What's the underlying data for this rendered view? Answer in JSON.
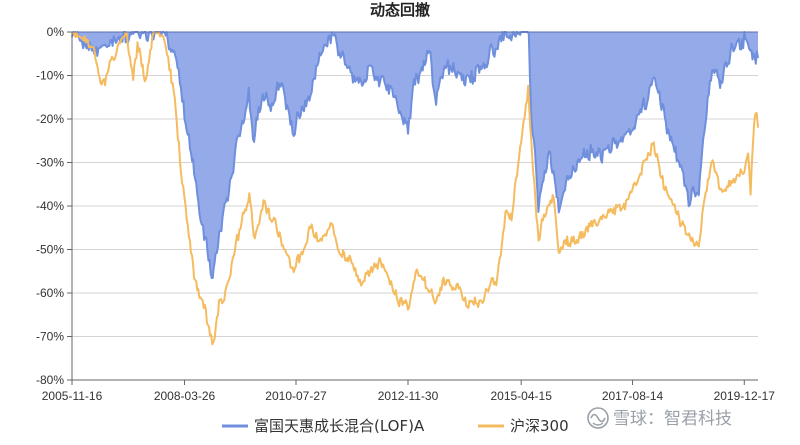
{
  "chart_data": {
    "type": "area",
    "title": "动态回撤",
    "x_ticks": [
      "2005-11-16",
      "2008-03-26",
      "2010-07-27",
      "2012-11-30",
      "2015-04-15",
      "2017-08-14",
      "2019-12-17"
    ],
    "y_ticks": [
      "0%",
      "-10%",
      "-20%",
      "-30%",
      "-40%",
      "-50%",
      "-60%",
      "-70%",
      "-80%"
    ],
    "ylim": [
      -80,
      0
    ],
    "xlim": [
      "2005-11-16",
      "2020-03-31"
    ],
    "grid": true,
    "legend_position": "bottom",
    "series": [
      {
        "name": "富国天惠成长混合(LOF)A",
        "color": "#6f8fdd",
        "fill": "#8ea5e8",
        "style": "area",
        "points": [
          [
            "2005-11-16",
            0
          ],
          [
            "2006-04-01",
            -3
          ],
          [
            "2006-07-01",
            -5
          ],
          [
            "2006-10-01",
            -2
          ],
          [
            "2007-01-01",
            -1
          ],
          [
            "2007-06-01",
            0
          ],
          [
            "2007-10-01",
            0
          ],
          [
            "2008-01-15",
            -5
          ],
          [
            "2008-03-26",
            -18
          ],
          [
            "2008-05-15",
            -28
          ],
          [
            "2008-07-01",
            -38
          ],
          [
            "2008-09-01",
            -48
          ],
          [
            "2008-10-28",
            -57
          ],
          [
            "2008-11-10",
            -52
          ],
          [
            "2008-12-25",
            -45
          ],
          [
            "2009-03-01",
            -36
          ],
          [
            "2009-06-01",
            -22
          ],
          [
            "2009-07-31",
            -15
          ],
          [
            "2009-09-01",
            -25
          ],
          [
            "2009-11-15",
            -14
          ],
          [
            "2010-01-15",
            -17
          ],
          [
            "2010-04-01",
            -12
          ],
          [
            "2010-07-01",
            -23
          ],
          [
            "2010-09-01",
            -18
          ],
          [
            "2010-11-15",
            -14
          ],
          [
            "2011-01-15",
            -6
          ],
          [
            "2011-04-01",
            -2
          ],
          [
            "2011-05-15",
            0
          ],
          [
            "2011-06-15",
            -4
          ],
          [
            "2011-09-01",
            -9
          ],
          [
            "2011-12-15",
            -13
          ],
          [
            "2012-02-15",
            -8
          ],
          [
            "2012-05-01",
            -11
          ],
          [
            "2012-08-01",
            -14
          ],
          [
            "2012-11-30",
            -22
          ],
          [
            "2013-01-15",
            -12
          ],
          [
            "2013-05-20",
            -5
          ],
          [
            "2013-06-25",
            -16
          ],
          [
            "2013-09-15",
            -8
          ],
          [
            "2013-12-15",
            -10
          ],
          [
            "2014-03-15",
            -11
          ],
          [
            "2014-07-01",
            -7
          ],
          [
            "2014-10-01",
            -3
          ],
          [
            "2014-12-01",
            0
          ],
          [
            "2015-04-15",
            0
          ],
          [
            "2015-06-12",
            0
          ],
          [
            "2015-07-01",
            -20
          ],
          [
            "2015-07-30",
            -27
          ],
          [
            "2015-08-25",
            -40
          ],
          [
            "2015-09-15",
            -35
          ],
          [
            "2015-11-15",
            -27
          ],
          [
            "2016-01-28",
            -40
          ],
          [
            "2016-03-15",
            -35
          ],
          [
            "2016-06-01",
            -31
          ],
          [
            "2016-09-01",
            -28
          ],
          [
            "2016-12-15",
            -28
          ],
          [
            "2017-03-15",
            -26
          ],
          [
            "2017-06-15",
            -24
          ],
          [
            "2017-08-14",
            -21
          ],
          [
            "2017-11-15",
            -17
          ],
          [
            "2018-01-25",
            -10
          ],
          [
            "2018-04-01",
            -18
          ],
          [
            "2018-07-01",
            -27
          ],
          [
            "2018-10-18",
            -38
          ],
          [
            "2019-01-03",
            -36
          ],
          [
            "2019-02-15",
            -22
          ],
          [
            "2019-04-15",
            -8
          ],
          [
            "2019-06-15",
            -12
          ],
          [
            "2019-09-01",
            -5
          ],
          [
            "2019-12-17",
            -2
          ],
          [
            "2020-02-01",
            -4
          ],
          [
            "2020-03-31",
            -6
          ]
        ]
      },
      {
        "name": "沪深300",
        "color": "#f5bb5f",
        "style": "line",
        "points": [
          [
            "2005-11-16",
            0
          ],
          [
            "2006-03-01",
            -2
          ],
          [
            "2006-05-15",
            -5
          ],
          [
            "2006-07-01",
            -13
          ],
          [
            "2006-09-01",
            -8
          ],
          [
            "2006-11-01",
            -3
          ],
          [
            "2007-01-01",
            0
          ],
          [
            "2007-02-27",
            -11
          ],
          [
            "2007-04-01",
            -3
          ],
          [
            "2007-06-04",
            -12
          ],
          [
            "2007-08-01",
            0
          ],
          [
            "2007-10-16",
            0
          ],
          [
            "2007-12-01",
            -8
          ],
          [
            "2008-01-20",
            -18
          ],
          [
            "2008-02-20",
            -30
          ],
          [
            "2008-04-20",
            -45
          ],
          [
            "2008-06-15",
            -57
          ],
          [
            "2008-08-20",
            -63
          ],
          [
            "2008-10-15",
            -70
          ],
          [
            "2008-11-04",
            -72
          ],
          [
            "2008-12-15",
            -62
          ],
          [
            "2009-02-01",
            -60
          ],
          [
            "2009-04-15",
            -50
          ],
          [
            "2009-06-15",
            -42
          ],
          [
            "2009-08-04",
            -38
          ],
          [
            "2009-09-15",
            -48
          ],
          [
            "2009-11-20",
            -40
          ],
          [
            "2010-01-15",
            -42
          ],
          [
            "2010-04-01",
            -47
          ],
          [
            "2010-07-01",
            -55
          ],
          [
            "2010-09-15",
            -50
          ],
          [
            "2010-11-08",
            -45
          ],
          [
            "2011-01-15",
            -48
          ],
          [
            "2011-04-18",
            -44
          ],
          [
            "2011-06-20",
            -50
          ],
          [
            "2011-09-01",
            -52
          ],
          [
            "2011-12-15",
            -58
          ],
          [
            "2012-02-15",
            -54
          ],
          [
            "2012-05-05",
            -53
          ],
          [
            "2012-07-15",
            -58
          ],
          [
            "2012-09-15",
            -62
          ],
          [
            "2012-11-30",
            -63
          ],
          [
            "2013-02-05",
            -55
          ],
          [
            "2013-04-15",
            -58
          ],
          [
            "2013-06-25",
            -62
          ],
          [
            "2013-09-15",
            -57
          ],
          [
            "2013-12-15",
            -59
          ],
          [
            "2014-03-15",
            -63
          ],
          [
            "2014-06-15",
            -62
          ],
          [
            "2014-09-01",
            -57
          ],
          [
            "2014-10-15",
            -57
          ],
          [
            "2014-12-15",
            -42
          ],
          [
            "2015-02-01",
            -43
          ],
          [
            "2015-04-15",
            -25
          ],
          [
            "2015-06-08",
            -12
          ],
          [
            "2015-06-30",
            -25
          ],
          [
            "2015-08-26",
            -48
          ],
          [
            "2015-10-15",
            -41
          ],
          [
            "2015-12-20",
            -38
          ],
          [
            "2016-01-28",
            -52
          ],
          [
            "2016-03-15",
            -49
          ],
          [
            "2016-06-15",
            -47
          ],
          [
            "2016-09-15",
            -45
          ],
          [
            "2016-12-15",
            -43
          ],
          [
            "2017-03-15",
            -41
          ],
          [
            "2017-06-01",
            -40
          ],
          [
            "2017-08-14",
            -36
          ],
          [
            "2017-11-15",
            -30
          ],
          [
            "2018-01-24",
            -26
          ],
          [
            "2018-03-15",
            -33
          ],
          [
            "2018-06-15",
            -40
          ],
          [
            "2018-09-01",
            -44
          ],
          [
            "2019-01-03",
            -49
          ],
          [
            "2019-02-15",
            -38
          ],
          [
            "2019-04-19",
            -30
          ],
          [
            "2019-06-15",
            -37
          ],
          [
            "2019-08-15",
            -35
          ],
          [
            "2019-11-01",
            -33
          ],
          [
            "2019-12-17",
            -32
          ],
          [
            "2020-01-15",
            -28
          ],
          [
            "2020-02-03",
            -37
          ],
          [
            "2020-03-01",
            -20
          ],
          [
            "2020-03-20",
            -18
          ],
          [
            "2020-03-31",
            -22
          ]
        ]
      }
    ]
  },
  "watermark": {
    "text": "雪球：智君科技"
  }
}
